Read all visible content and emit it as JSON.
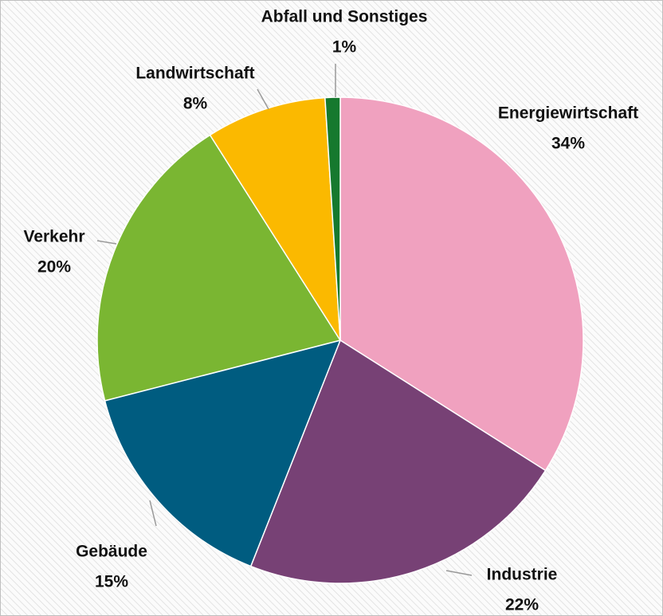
{
  "chart_data": {
    "type": "pie",
    "categories": [
      "Energiewirtschaft",
      "Industrie",
      "Gebäude",
      "Verkehr",
      "Landwirtschaft",
      "Abfall und Sonstiges"
    ],
    "values": [
      34,
      22,
      15,
      20,
      8,
      1
    ],
    "value_labels": [
      "34%",
      "22%",
      "15%",
      "20%",
      "8%",
      "1%"
    ],
    "colors": [
      "#f0a1bf",
      "#774175",
      "#005c80",
      "#7ab632",
      "#fbb900",
      "#16792e"
    ]
  }
}
